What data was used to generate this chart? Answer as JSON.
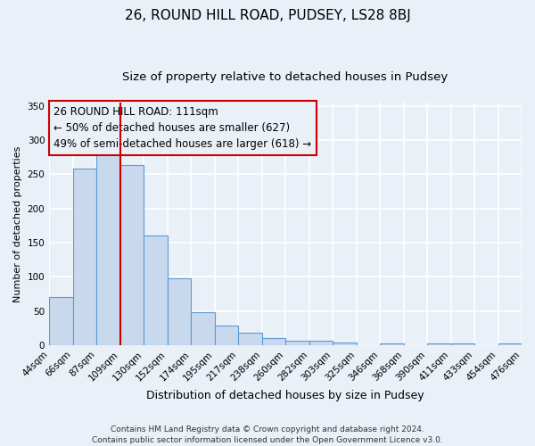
{
  "title": "26, ROUND HILL ROAD, PUDSEY, LS28 8BJ",
  "subtitle": "Size of property relative to detached houses in Pudsey",
  "xlabel": "Distribution of detached houses by size in Pudsey",
  "ylabel": "Number of detached properties",
  "bar_values": [
    70,
    259,
    293,
    263,
    160,
    98,
    48,
    28,
    18,
    10,
    6,
    6,
    4,
    0,
    3,
    0,
    2,
    2,
    0,
    2
  ],
  "bin_labels": [
    "44sqm",
    "66sqm",
    "87sqm",
    "109sqm",
    "130sqm",
    "152sqm",
    "174sqm",
    "195sqm",
    "217sqm",
    "238sqm",
    "260sqm",
    "282sqm",
    "303sqm",
    "325sqm",
    "346sqm",
    "368sqm",
    "390sqm",
    "411sqm",
    "433sqm",
    "454sqm",
    "476sqm"
  ],
  "bar_color": "#c9d9ed",
  "bar_edge_color": "#5b9bd5",
  "background_color": "#eaf0f8",
  "grid_color": "#ffffff",
  "annotation_line1": "26 ROUND HILL ROAD: 111sqm",
  "annotation_line2": "← 50% of detached houses are smaller (627)",
  "annotation_line3": "49% of semi-detached houses are larger (618) →",
  "annotation_box_edge_color": "#cc0000",
  "vline_color": "#cc0000",
  "vline_position": 3.5,
  "ylim": [
    0,
    355
  ],
  "yticks": [
    0,
    50,
    100,
    150,
    200,
    250,
    300,
    350
  ],
  "footnote_line1": "Contains HM Land Registry data © Crown copyright and database right 2024.",
  "footnote_line2": "Contains public sector information licensed under the Open Government Licence v3.0.",
  "title_fontsize": 11,
  "subtitle_fontsize": 9.5,
  "xlabel_fontsize": 9,
  "ylabel_fontsize": 8,
  "tick_fontsize": 7.5,
  "annotation_fontsize": 8.5,
  "footnote_fontsize": 6.5
}
